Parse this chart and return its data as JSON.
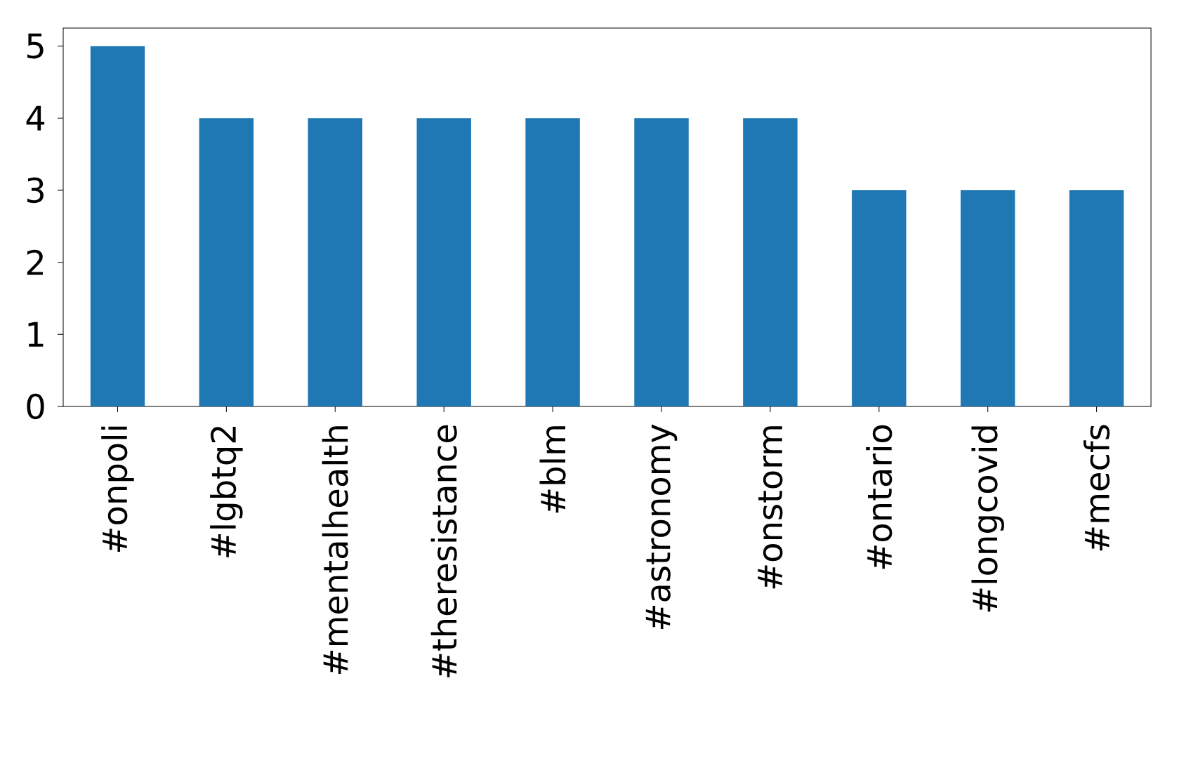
{
  "chart_data": {
    "type": "bar",
    "categories": [
      "#onpoli",
      "#lgbtq2",
      "#mentalhealth",
      "#theresistance",
      "#blm",
      "#astronomy",
      "#onstorm",
      "#ontario",
      "#longcovid",
      "#mecfs"
    ],
    "values": [
      5,
      4,
      4,
      4,
      4,
      4,
      4,
      3,
      3,
      3
    ],
    "color": "#1f77b4",
    "ylim": [
      0,
      5.25
    ],
    "yticks": [
      0,
      1,
      2,
      3,
      4,
      5
    ]
  }
}
